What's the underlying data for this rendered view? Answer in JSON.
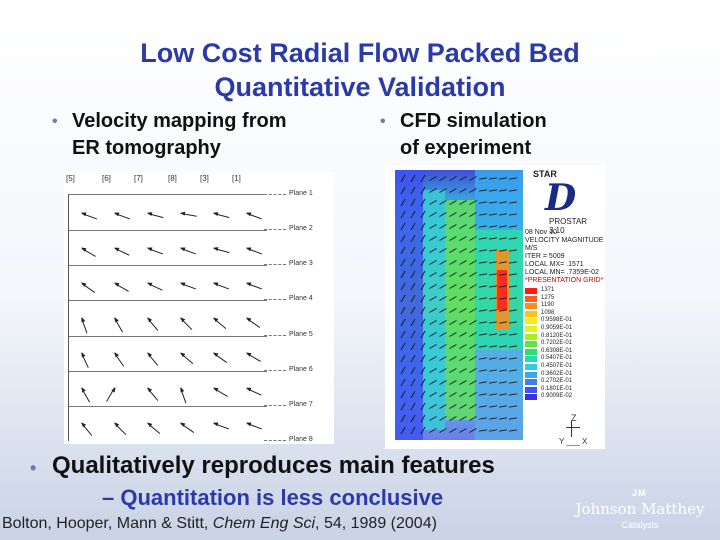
{
  "slide": {
    "title_line1": "Low Cost Radial Flow Packed Bed",
    "title_line2": "Quantitative Validation",
    "bullets": [
      {
        "line1": "Velocity mapping from",
        "line2": "ER tomography"
      },
      {
        "line1": "CFD simulation",
        "line2": "of experiment"
      },
      {
        "line1": "Qualitatively reproduces main features"
      }
    ],
    "sub_bullet": "– Quantitation is less conclusive",
    "citation": {
      "authors": "Bolton, Hooper, Mann & Stitt, ",
      "journal": "Chem Eng Sci",
      "rest": ", 54, 1989 (2004)"
    }
  },
  "velocity_map": {
    "column_headers": [
      "[5]",
      "[6]",
      "[7]",
      "[8]",
      "[3]",
      "[1]"
    ],
    "planes": [
      "Plane 1",
      "Plane 2",
      "Plane 3",
      "Plane 4",
      "Plane 5",
      "Plane 6",
      "Plane 7",
      "Plane 8"
    ]
  },
  "cfd": {
    "logo_star": "STAR",
    "logo_letter": "D",
    "logo_product": "PROSTAR 3.10",
    "info_lines": [
      "08 Nov 10",
      "VELOCITY MAGNITUDE",
      "M/S",
      "ITER = 5009",
      "LOCAL MX= .1571",
      "LOCAL MN= .7359E-02"
    ],
    "info_red": "*PRESENTATION GRID*",
    "scale": [
      {
        "label": "1371",
        "color": "#ff1a1a"
      },
      {
        "label": "1275",
        "color": "#ff5a1a"
      },
      {
        "label": "1190",
        "color": "#ff8c1a"
      },
      {
        "label": "1098",
        "color": "#ffc21a"
      },
      {
        "label": "0.9598E-01",
        "color": "#ffe81a"
      },
      {
        "label": "0.9059E-01",
        "color": "#e1f51a"
      },
      {
        "label": "0.8120E-01",
        "color": "#a8f01a"
      },
      {
        "label": "0.7202E-01",
        "color": "#5ee63a"
      },
      {
        "label": "0.6308E-01",
        "color": "#2fdc72"
      },
      {
        "label": "0.5407E-01",
        "color": "#2fd6b2"
      },
      {
        "label": "0.4507E-01",
        "color": "#2fcfe0"
      },
      {
        "label": "0.3602E-01",
        "color": "#3aa8ee"
      },
      {
        "label": "0.2702E-01",
        "color": "#3f7ef0"
      },
      {
        "label": "0.1801E-01",
        "color": "#3f55ee"
      },
      {
        "label": "0.9009E-02",
        "color": "#3a30e0"
      }
    ],
    "axis_z": "Z",
    "axis_yx": "Y ___ X"
  },
  "logo": {
    "badge": "JM",
    "name": "Johnson Matthey",
    "division": "Catalysts"
  }
}
